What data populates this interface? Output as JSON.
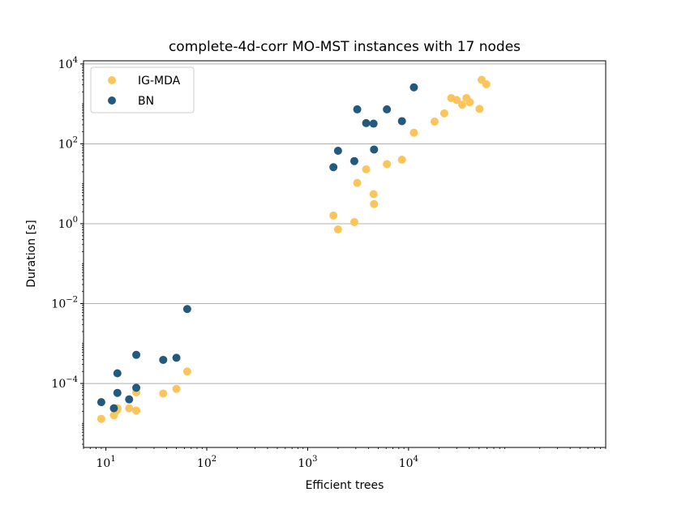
{
  "chart_data": {
    "type": "scatter",
    "title": "complete-4d-corr MO-MST instances with 17 nodes",
    "xlabel": "Efficient trees",
    "ylabel": "Duration [s]",
    "xscale": "log",
    "yscale": "log",
    "xlim": [
      6,
      900000
    ],
    "ylim": [
      2.5e-06,
      12000
    ],
    "grid": "y-major",
    "legend_position": "top-left",
    "x_ticks": [
      {
        "value": 10,
        "base": "10",
        "exp": "1"
      },
      {
        "value": 100,
        "base": "10",
        "exp": "2"
      },
      {
        "value": 1000,
        "base": "10",
        "exp": "3"
      },
      {
        "value": 10000,
        "base": "10",
        "exp": "4"
      }
    ],
    "y_ticks": [
      {
        "value": 0.0001,
        "base": "10",
        "exp": "−4"
      },
      {
        "value": 0.01,
        "base": "10",
        "exp": "−2"
      },
      {
        "value": 1,
        "base": "10",
        "exp": "0"
      },
      {
        "value": 100,
        "base": "10",
        "exp": "2"
      },
      {
        "value": 10000,
        "base": "10",
        "exp": "4"
      }
    ],
    "series": [
      {
        "name": "IG-MDA",
        "color": "#fcc55c",
        "points": [
          {
            "x": 9,
            "y": 1.3e-05
          },
          {
            "x": 12,
            "y": 1.6e-05
          },
          {
            "x": 12.5,
            "y": 2e-05
          },
          {
            "x": 13,
            "y": 2.2e-05
          },
          {
            "x": 13,
            "y": 2.4e-05
          },
          {
            "x": 17,
            "y": 2.4e-05
          },
          {
            "x": 20,
            "y": 2.1e-05
          },
          {
            "x": 20,
            "y": 6e-05
          },
          {
            "x": 37,
            "y": 5.6e-05
          },
          {
            "x": 50,
            "y": 7.3e-05
          },
          {
            "x": 64,
            "y": 0.0002
          },
          {
            "x": 1800,
            "y": 1.6
          },
          {
            "x": 2000,
            "y": 0.72
          },
          {
            "x": 2900,
            "y": 1.1
          },
          {
            "x": 3100,
            "y": 10.5
          },
          {
            "x": 3800,
            "y": 23
          },
          {
            "x": 4500,
            "y": 5.5
          },
          {
            "x": 4550,
            "y": 3.1
          },
          {
            "x": 6100,
            "y": 31
          },
          {
            "x": 8600,
            "y": 40
          },
          {
            "x": 11300,
            "y": 190
          },
          {
            "x": 18100,
            "y": 360
          },
          {
            "x": 22600,
            "y": 580
          },
          {
            "x": 26500,
            "y": 1400
          },
          {
            "x": 30000,
            "y": 1250
          },
          {
            "x": 34000,
            "y": 950
          },
          {
            "x": 37500,
            "y": 1400
          },
          {
            "x": 40500,
            "y": 1100
          },
          {
            "x": 50500,
            "y": 750
          },
          {
            "x": 53000,
            "y": 4000
          },
          {
            "x": 59000,
            "y": 3100
          }
        ]
      },
      {
        "name": "BN",
        "color": "#23597c",
        "points": [
          {
            "x": 9,
            "y": 3.4e-05
          },
          {
            "x": 12,
            "y": 2.4e-05
          },
          {
            "x": 13,
            "y": 0.00018
          },
          {
            "x": 13,
            "y": 5.8e-05
          },
          {
            "x": 17,
            "y": 4e-05
          },
          {
            "x": 20,
            "y": 7.8e-05
          },
          {
            "x": 20,
            "y": 0.00052
          },
          {
            "x": 37,
            "y": 0.00039
          },
          {
            "x": 50,
            "y": 0.00044
          },
          {
            "x": 64,
            "y": 0.0073
          },
          {
            "x": 1800,
            "y": 26
          },
          {
            "x": 2000,
            "y": 67
          },
          {
            "x": 2900,
            "y": 37
          },
          {
            "x": 3100,
            "y": 730
          },
          {
            "x": 3800,
            "y": 330
          },
          {
            "x": 4500,
            "y": 320
          },
          {
            "x": 4550,
            "y": 72
          },
          {
            "x": 6100,
            "y": 730
          },
          {
            "x": 8600,
            "y": 370
          },
          {
            "x": 11300,
            "y": 2600
          }
        ]
      }
    ]
  }
}
